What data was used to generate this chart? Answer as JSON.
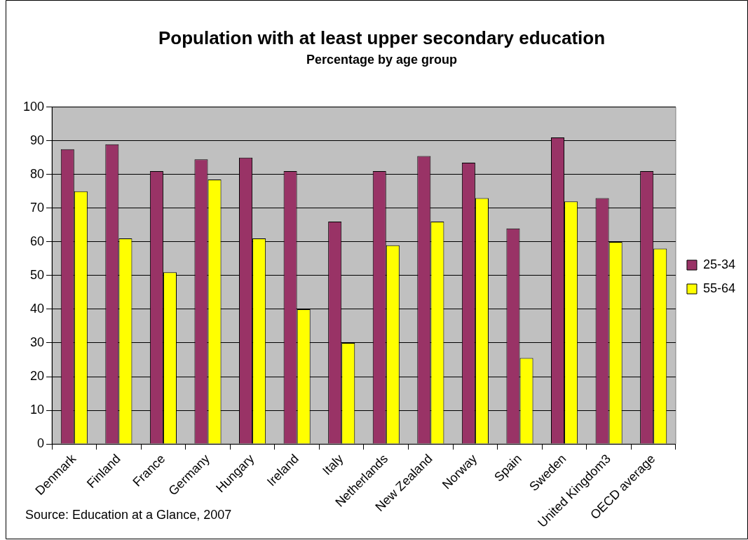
{
  "chart_data": {
    "type": "bar",
    "title": "Population with at least upper secondary education",
    "subtitle": "Percentage by age group",
    "categories": [
      "Denmark",
      "Finland",
      "France",
      "Germany",
      "Hungary",
      "Ireland",
      "Italy",
      "Netherlands",
      "New Zealand",
      "Norway",
      "Spain",
      "Sweden",
      "United Kingdom3",
      "OECD average"
    ],
    "series": [
      {
        "name": "25-34",
        "color": "#993366",
        "values": [
          87.5,
          89,
          81,
          84.5,
          85,
          81,
          66,
          81,
          85.5,
          83.5,
          64,
          91,
          73,
          81
        ]
      },
      {
        "name": "55-64",
        "color": "#ffff00",
        "values": [
          75,
          61,
          51,
          78.5,
          61,
          40,
          30,
          59,
          66,
          73,
          25.5,
          72,
          60,
          58
        ]
      }
    ],
    "ylim": [
      0,
      100
    ],
    "yticks": [
      0,
      10,
      20,
      30,
      40,
      50,
      60,
      70,
      80,
      90,
      100
    ],
    "grid": "y",
    "legend": "right",
    "annotations": [
      "Source: Education at a Glance, 2007"
    ]
  }
}
